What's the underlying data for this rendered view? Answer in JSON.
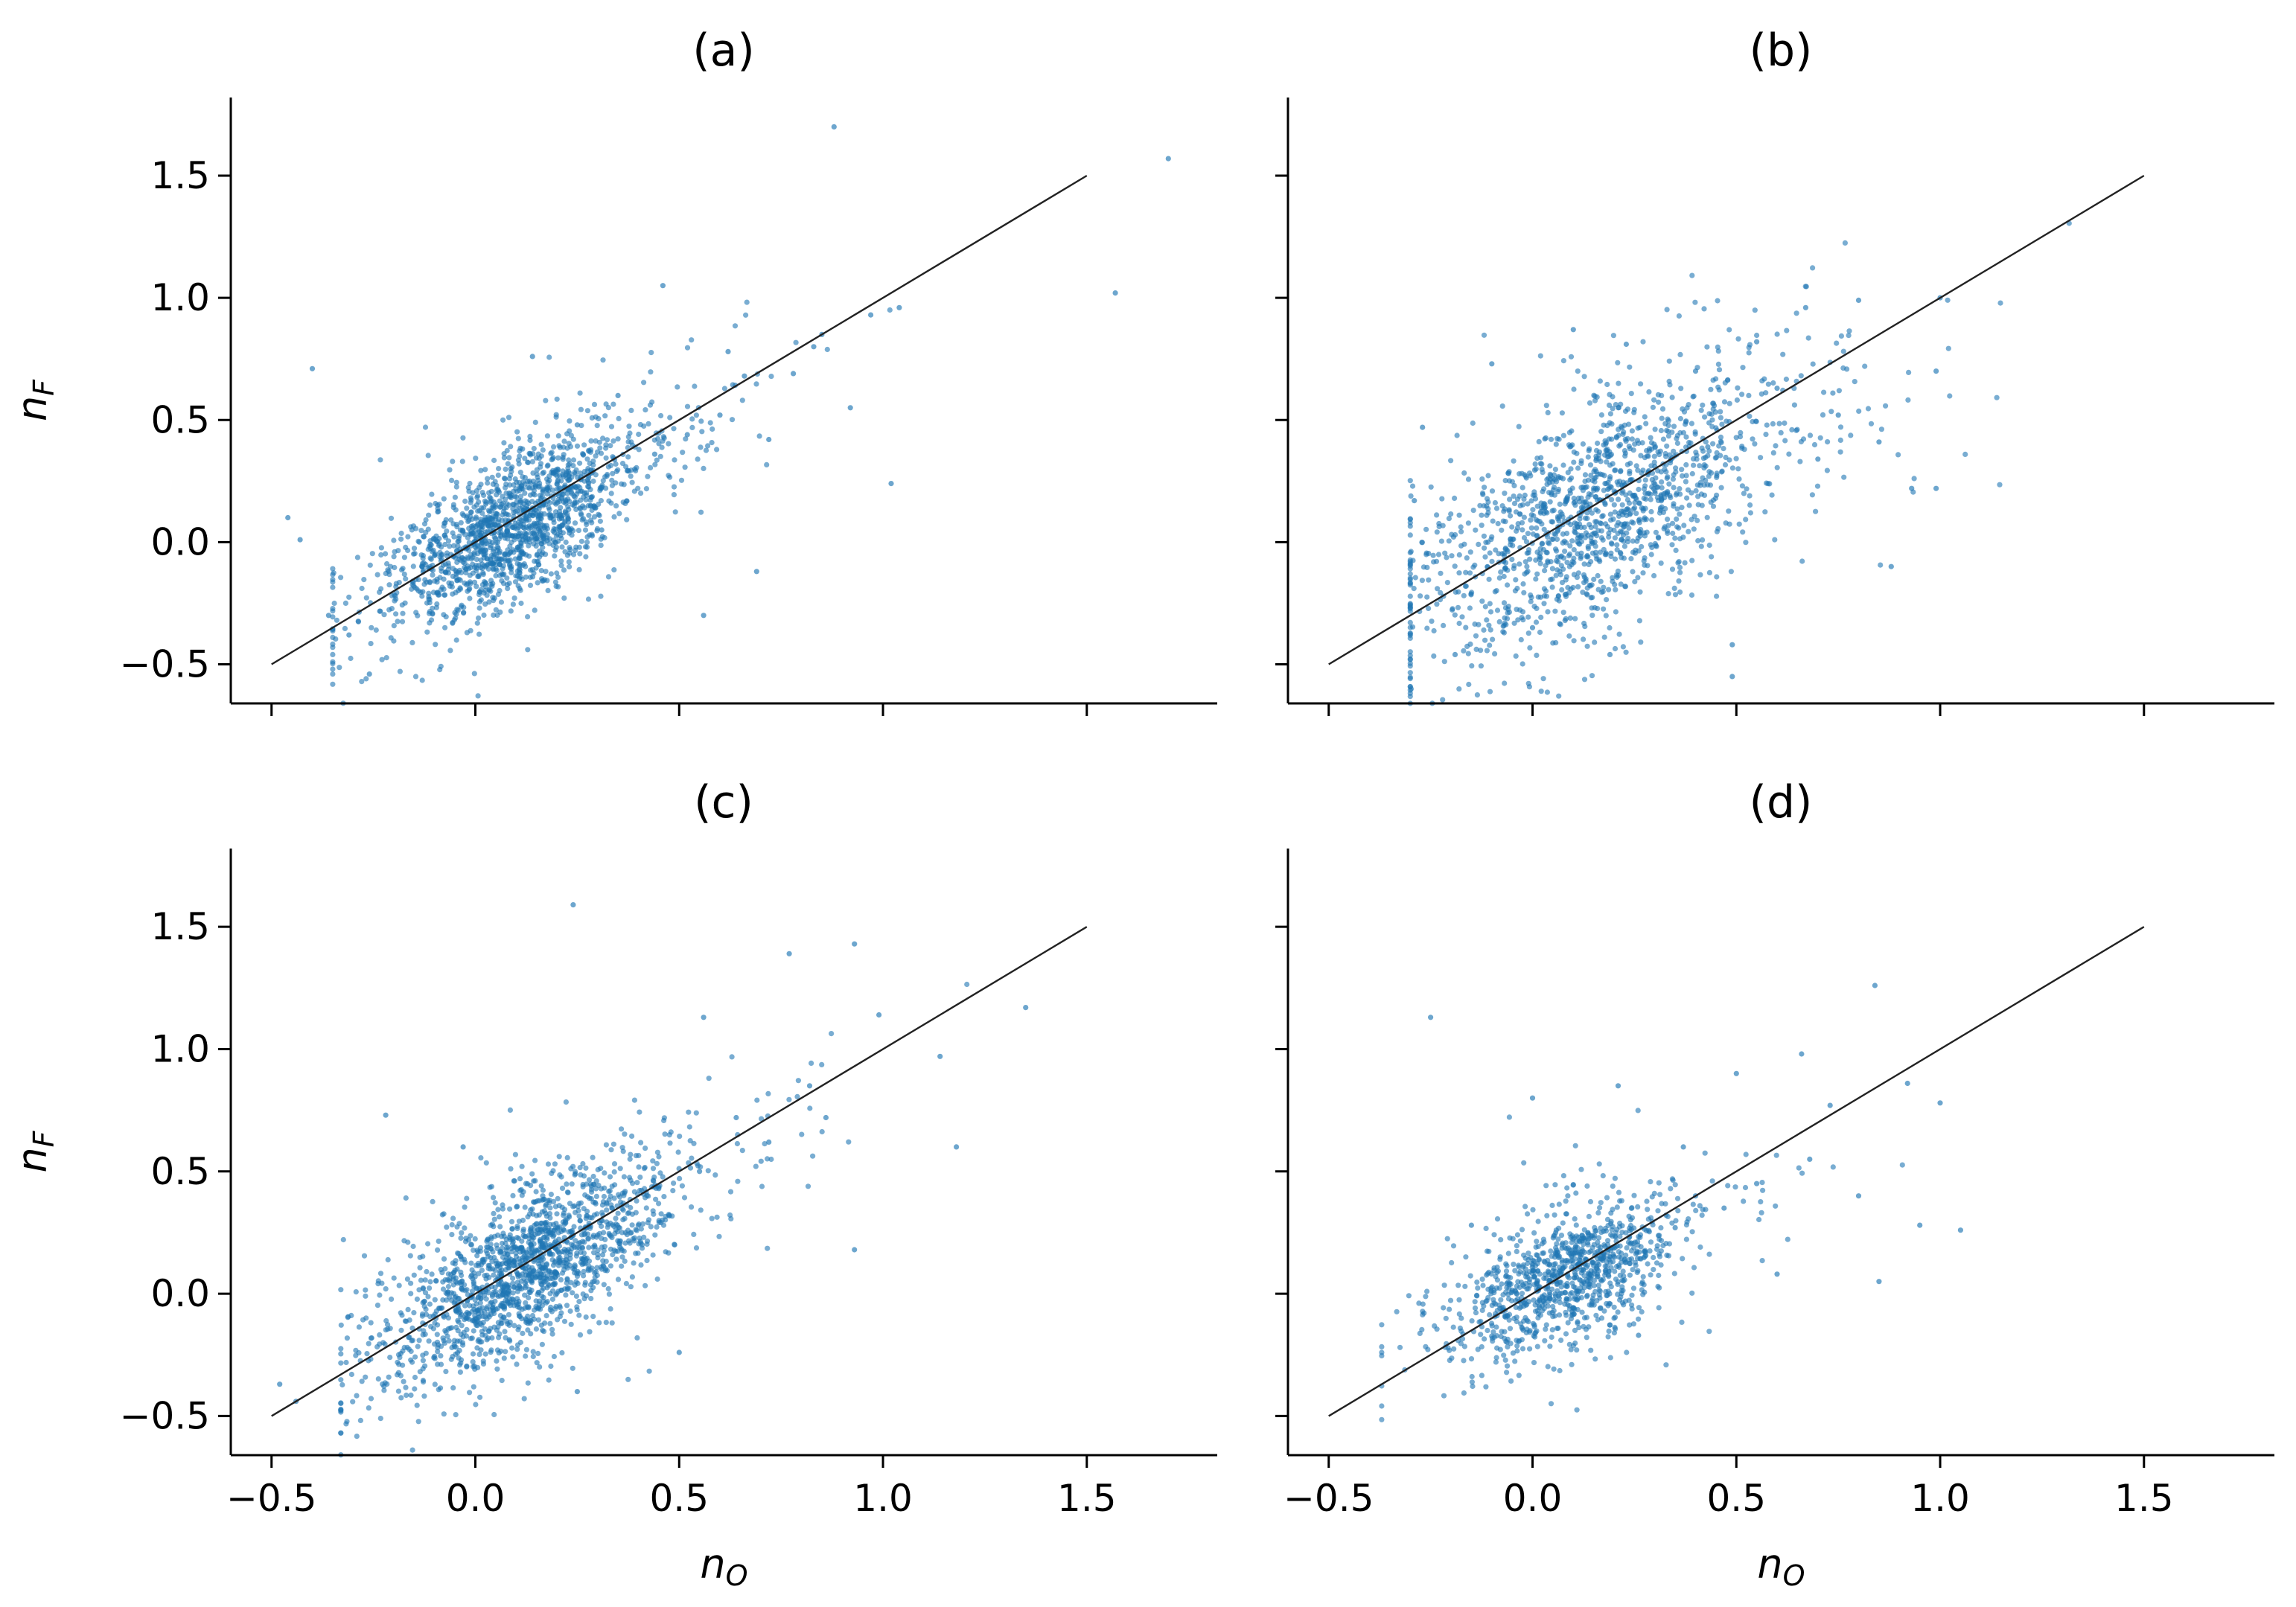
{
  "figure": {
    "colors": {
      "point": "#1f77b4",
      "identity_line": "#222222",
      "axis": "#000000"
    },
    "x_axis_label": {
      "base": "n",
      "subscript": "O"
    },
    "y_axis_label": {
      "base": "n",
      "subscript": "F"
    },
    "x_ticks": [
      "−0.5",
      "0.0",
      "0.5",
      "1.0",
      "1.5"
    ],
    "y_ticks": [
      "−0.5",
      "0.0",
      "0.5",
      "1.0",
      "1.5"
    ]
  },
  "chart_data": [
    {
      "type": "scatter",
      "title": "(a)",
      "xlabel": "nO",
      "ylabel": "nF",
      "xlim": [
        -0.6,
        1.82
      ],
      "ylim": [
        -0.66,
        1.82
      ],
      "identity_line": [
        [
          -0.5,
          -0.5
        ],
        [
          1.5,
          1.5
        ]
      ],
      "cluster": {
        "center": [
          0.1,
          0.07
        ],
        "n_points": 1600,
        "slope": 0.85,
        "spread_x": 0.14,
        "spread_y": 0.13
      },
      "points": [
        [
          0.88,
          1.7
        ],
        [
          1.7,
          1.57
        ],
        [
          1.57,
          1.02
        ],
        [
          -0.4,
          0.71
        ],
        [
          0.46,
          1.05
        ],
        [
          1.02,
          0.24
        ],
        [
          1.04,
          0.96
        ],
        [
          0.56,
          -0.3
        ],
        [
          0.69,
          -0.12
        ],
        [
          -0.26,
          -0.54
        ],
        [
          -0.46,
          0.1
        ],
        [
          -0.43,
          0.01
        ],
        [
          0.97,
          0.93
        ],
        [
          0.85,
          0.85
        ],
        [
          0.66,
          0.68
        ],
        [
          0.92,
          0.55
        ],
        [
          0.62,
          0.78
        ],
        [
          0.35,
          0.6
        ],
        [
          0.25,
          0.48
        ],
        [
          -0.31,
          -0.38
        ],
        [
          -0.36,
          -0.3
        ],
        [
          -0.13,
          -0.1
        ],
        [
          0.14,
          0.76
        ],
        [
          0.78,
          0.69
        ],
        [
          0.44,
          0.36
        ],
        [
          0.52,
          0.44
        ],
        [
          0.6,
          0.52
        ],
        [
          0.72,
          0.42
        ],
        [
          0.83,
          0.8
        ],
        [
          0.31,
          0.05
        ]
      ]
    },
    {
      "type": "scatter",
      "title": "(b)",
      "xlabel": "nO",
      "ylabel": "nF",
      "xlim": [
        -0.6,
        1.82
      ],
      "ylim": [
        -0.66,
        1.82
      ],
      "identity_line": [
        [
          -0.5,
          -0.5
        ],
        [
          1.5,
          1.5
        ]
      ],
      "cluster": {
        "center": [
          0.15,
          0.12
        ],
        "n_points": 1500,
        "slope": 0.7,
        "spread_x": 0.2,
        "spread_y": 0.2
      },
      "points": [
        [
          1.0,
          1.0
        ],
        [
          0.8,
          0.99
        ],
        [
          0.67,
          0.96
        ],
        [
          0.99,
          0.7
        ],
        [
          0.99,
          0.22
        ],
        [
          0.88,
          -0.1
        ],
        [
          0.49,
          -0.42
        ],
        [
          0.49,
          -0.55
        ],
        [
          -0.19,
          -0.46
        ],
        [
          -0.27,
          0.47
        ],
        [
          -0.29,
          0.17
        ],
        [
          0.1,
          0.87
        ],
        [
          0.23,
          0.81
        ],
        [
          0.93,
          0.22
        ],
        [
          0.85,
          0.41
        ],
        [
          0.75,
          0.52
        ],
        [
          0.6,
          0.63
        ],
        [
          0.55,
          0.82
        ],
        [
          0.4,
          0.7
        ],
        [
          -0.1,
          0.73
        ],
        [
          0.0,
          -0.35
        ],
        [
          0.19,
          -0.46
        ],
        [
          0.7,
          0.34
        ],
        [
          0.43,
          0.39
        ],
        [
          0.3,
          0.31
        ]
      ]
    },
    {
      "type": "scatter",
      "title": "(c)",
      "xlabel": "nO",
      "ylabel": "nF",
      "xlim": [
        -0.6,
        1.82
      ],
      "ylim": [
        -0.66,
        1.82
      ],
      "identity_line": [
        [
          -0.5,
          -0.5
        ],
        [
          1.5,
          1.5
        ]
      ],
      "cluster": {
        "center": [
          0.12,
          0.1
        ],
        "n_points": 1700,
        "slope": 0.9,
        "spread_x": 0.16,
        "spread_y": 0.15
      },
      "points": [
        [
          0.24,
          1.59
        ],
        [
          1.35,
          1.17
        ],
        [
          0.77,
          1.39
        ],
        [
          0.93,
          1.43
        ],
        [
          1.18,
          0.6
        ],
        [
          1.14,
          0.97
        ],
        [
          0.99,
          1.14
        ],
        [
          -0.48,
          -0.37
        ],
        [
          -0.44,
          -0.44
        ],
        [
          -0.22,
          0.73
        ],
        [
          0.93,
          0.18
        ],
        [
          0.56,
          1.13
        ],
        [
          0.64,
          0.72
        ],
        [
          0.82,
          0.85
        ],
        [
          0.86,
          0.72
        ],
        [
          0.45,
          0.43
        ],
        [
          0.55,
          0.5
        ],
        [
          0.72,
          0.62
        ],
        [
          0.3,
          0.24
        ],
        [
          -0.03,
          0.6
        ],
        [
          0.25,
          -0.4
        ],
        [
          0.5,
          -0.24
        ]
      ]
    },
    {
      "type": "scatter",
      "title": "(d)",
      "xlabel": "nO",
      "ylabel": "nF",
      "xlim": [
        -0.6,
        1.82
      ],
      "ylim": [
        -0.66,
        1.82
      ],
      "identity_line": [
        [
          -0.5,
          -0.5
        ],
        [
          1.5,
          1.5
        ]
      ],
      "cluster": {
        "center": [
          0.08,
          0.07
        ],
        "n_points": 1050,
        "slope": 0.6,
        "spread_x": 0.13,
        "spread_y": 0.12
      },
      "points": [
        [
          -0.25,
          1.13
        ],
        [
          0.84,
          1.26
        ],
        [
          1.0,
          0.78
        ],
        [
          0.92,
          0.86
        ],
        [
          1.05,
          0.26
        ],
        [
          0.85,
          0.05
        ],
        [
          0.66,
          0.98
        ],
        [
          0.5,
          0.9
        ],
        [
          0.95,
          0.28
        ],
        [
          0.68,
          0.55
        ],
        [
          0.55,
          0.45
        ],
        [
          0.47,
          0.35
        ],
        [
          0.37,
          0.6
        ],
        [
          0.21,
          0.85
        ],
        [
          0.0,
          0.8
        ],
        [
          -0.15,
          0.28
        ],
        [
          0.73,
          0.77
        ],
        [
          0.26,
          -0.17
        ],
        [
          0.6,
          0.08
        ],
        [
          0.4,
          0.4
        ],
        [
          0.35,
          0.27
        ],
        [
          0.8,
          0.4
        ]
      ]
    }
  ]
}
